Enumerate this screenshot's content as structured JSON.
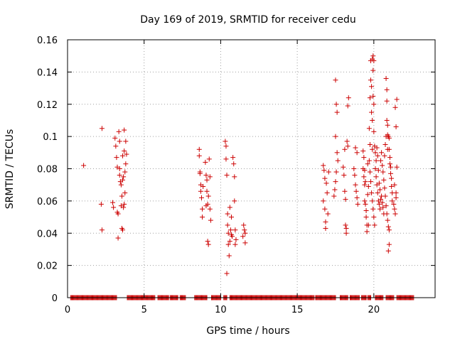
{
  "chart_data": {
    "type": "scatter",
    "title": "Day 169 of 2019, SRMTID for receiver cedu",
    "xlabel": "GPS time / hours",
    "ylabel": "SRMTID / TECUs",
    "xlim": [
      0,
      24
    ],
    "ylim": [
      0,
      0.16
    ],
    "xticks": [
      "0",
      "5",
      "10",
      "15",
      "20"
    ],
    "xtick_values": [
      0,
      5,
      10,
      15,
      20
    ],
    "yticks": [
      "0",
      "0.02",
      "0.04",
      "0.06",
      "0.08",
      "0.1",
      "0.12",
      "0.14",
      "0.16"
    ],
    "ytick_values": [
      0,
      0.02,
      0.04,
      0.06,
      0.08,
      0.1,
      0.12,
      0.14,
      0.16
    ],
    "grid": true,
    "marker": "+",
    "color": "#cc0000",
    "zero_bands": [
      [
        0.2,
        3.2
      ],
      [
        3.9,
        5.7
      ],
      [
        5.9,
        6.6
      ],
      [
        6.7,
        7.2
      ],
      [
        7.35,
        7.7
      ],
      [
        8.3,
        9.1
      ],
      [
        9.4,
        10.0
      ],
      [
        10.2,
        10.4
      ],
      [
        10.6,
        16.1
      ],
      [
        16.2,
        17.5
      ],
      [
        17.8,
        18.3
      ],
      [
        18.45,
        19.05
      ],
      [
        19.2,
        19.5
      ],
      [
        19.6,
        19.8
      ],
      [
        20.1,
        20.6
      ],
      [
        20.8,
        21.3
      ],
      [
        21.5,
        22.6
      ]
    ],
    "series": [
      {
        "name": "SRMTID",
        "points": [
          [
            1.05,
            0.082
          ],
          [
            2.25,
            0.105
          ],
          [
            2.2,
            0.058
          ],
          [
            2.25,
            0.042
          ],
          [
            2.95,
            0.059
          ],
          [
            3.0,
            0.056
          ],
          [
            3.1,
            0.099
          ],
          [
            3.15,
            0.094
          ],
          [
            3.2,
            0.087
          ],
          [
            3.25,
            0.081
          ],
          [
            3.3,
            0.052
          ],
          [
            3.3,
            0.037
          ],
          [
            3.35,
            0.103
          ],
          [
            3.4,
            0.097
          ],
          [
            3.4,
            0.076
          ],
          [
            3.45,
            0.072
          ],
          [
            3.5,
            0.07
          ],
          [
            3.5,
            0.057
          ],
          [
            3.55,
            0.043
          ],
          [
            3.6,
            0.088
          ],
          [
            3.6,
            0.073
          ],
          [
            3.65,
            0.075
          ],
          [
            3.65,
            0.056
          ],
          [
            3.7,
            0.104
          ],
          [
            3.7,
            0.091
          ],
          [
            3.75,
            0.078
          ],
          [
            3.75,
            0.065
          ],
          [
            3.8,
            0.083
          ],
          [
            3.8,
            0.097
          ],
          [
            3.85,
            0.089
          ],
          [
            3.55,
            0.063
          ],
          [
            3.4,
            0.08
          ],
          [
            3.6,
            0.042
          ],
          [
            3.25,
            0.053
          ],
          [
            3.7,
            0.058
          ],
          [
            8.6,
            0.092
          ],
          [
            8.6,
            0.088
          ],
          [
            8.65,
            0.078
          ],
          [
            8.65,
            0.077
          ],
          [
            8.7,
            0.07
          ],
          [
            8.7,
            0.066
          ],
          [
            8.75,
            0.062
          ],
          [
            8.8,
            0.055
          ],
          [
            8.8,
            0.05
          ],
          [
            9.0,
            0.084
          ],
          [
            9.05,
            0.076
          ],
          [
            9.1,
            0.073
          ],
          [
            9.1,
            0.066
          ],
          [
            9.15,
            0.058
          ],
          [
            9.15,
            0.035
          ],
          [
            9.2,
            0.033
          ],
          [
            9.25,
            0.086
          ],
          [
            9.3,
            0.075
          ],
          [
            9.3,
            0.055
          ],
          [
            9.35,
            0.048
          ],
          [
            9.2,
            0.063
          ],
          [
            9.05,
            0.057
          ],
          [
            8.85,
            0.069
          ],
          [
            10.3,
            0.097
          ],
          [
            10.35,
            0.086
          ],
          [
            10.4,
            0.076
          ],
          [
            10.45,
            0.052
          ],
          [
            10.45,
            0.045
          ],
          [
            10.5,
            0.04
          ],
          [
            10.5,
            0.033
          ],
          [
            10.55,
            0.026
          ],
          [
            10.4,
            0.015
          ],
          [
            10.6,
            0.056
          ],
          [
            10.65,
            0.042
          ],
          [
            10.7,
            0.039
          ],
          [
            10.75,
            0.038
          ],
          [
            10.8,
            0.087
          ],
          [
            10.85,
            0.083
          ],
          [
            10.9,
            0.075
          ],
          [
            10.9,
            0.06
          ],
          [
            10.95,
            0.042
          ],
          [
            10.95,
            0.033
          ],
          [
            11.0,
            0.036
          ],
          [
            10.35,
            0.094
          ],
          [
            10.7,
            0.05
          ],
          [
            10.6,
            0.035
          ],
          [
            11.5,
            0.045
          ],
          [
            11.55,
            0.042
          ],
          [
            11.6,
            0.04
          ],
          [
            11.6,
            0.034
          ],
          [
            11.45,
            0.038
          ],
          [
            16.7,
            0.082
          ],
          [
            16.75,
            0.079
          ],
          [
            16.8,
            0.074
          ],
          [
            16.8,
            0.055
          ],
          [
            16.85,
            0.047
          ],
          [
            16.85,
            0.043
          ],
          [
            16.9,
            0.071
          ],
          [
            16.95,
            0.065
          ],
          [
            17.0,
            0.052
          ],
          [
            17.05,
            0.078
          ],
          [
            16.7,
            0.06
          ],
          [
            17.4,
            0.063
          ],
          [
            17.45,
            0.067
          ],
          [
            17.5,
            0.135
          ],
          [
            17.55,
            0.12
          ],
          [
            17.6,
            0.115
          ],
          [
            17.5,
            0.1
          ],
          [
            17.6,
            0.09
          ],
          [
            17.55,
            0.078
          ],
          [
            17.5,
            0.072
          ],
          [
            17.65,
            0.085
          ],
          [
            18.0,
            0.081
          ],
          [
            18.05,
            0.076
          ],
          [
            18.1,
            0.066
          ],
          [
            18.15,
            0.061
          ],
          [
            18.15,
            0.045
          ],
          [
            18.2,
            0.043
          ],
          [
            18.2,
            0.04
          ],
          [
            18.25,
            0.097
          ],
          [
            18.3,
            0.094
          ],
          [
            18.3,
            0.119
          ],
          [
            18.35,
            0.124
          ],
          [
            18.1,
            0.092
          ],
          [
            18.7,
            0.08
          ],
          [
            18.75,
            0.076
          ],
          [
            18.8,
            0.07
          ],
          [
            18.85,
            0.066
          ],
          [
            18.9,
            0.062
          ],
          [
            18.95,
            0.058
          ],
          [
            18.8,
            0.093
          ],
          [
            18.9,
            0.09
          ],
          [
            19.3,
            0.08
          ],
          [
            19.35,
            0.075
          ],
          [
            19.4,
            0.07
          ],
          [
            19.4,
            0.06
          ],
          [
            19.45,
            0.058
          ],
          [
            19.5,
            0.054
          ],
          [
            19.5,
            0.05
          ],
          [
            19.55,
            0.045
          ],
          [
            19.55,
            0.041
          ],
          [
            19.6,
            0.083
          ],
          [
            19.6,
            0.064
          ],
          [
            19.65,
            0.069
          ],
          [
            19.65,
            0.045
          ],
          [
            19.3,
            0.091
          ],
          [
            19.35,
            0.087
          ],
          [
            19.4,
            0.079
          ],
          [
            19.45,
            0.072
          ],
          [
            19.7,
            0.105
          ],
          [
            19.75,
            0.124
          ],
          [
            19.75,
            0.095
          ],
          [
            19.8,
            0.147
          ],
          [
            19.8,
            0.135
          ],
          [
            19.85,
            0.131
          ],
          [
            19.9,
            0.148
          ],
          [
            19.9,
            0.11
          ],
          [
            19.9,
            0.092
          ],
          [
            19.95,
            0.15
          ],
          [
            19.95,
            0.141
          ],
          [
            20.0,
            0.147
          ],
          [
            20.0,
            0.103
          ],
          [
            20.05,
            0.094
          ],
          [
            20.0,
            0.12
          ],
          [
            19.85,
            0.115
          ],
          [
            19.95,
            0.125
          ],
          [
            19.7,
            0.085
          ],
          [
            19.75,
            0.078
          ],
          [
            19.8,
            0.072
          ],
          [
            19.85,
            0.065
          ],
          [
            19.9,
            0.06
          ],
          [
            19.95,
            0.055
          ],
          [
            20.0,
            0.05
          ],
          [
            20.05,
            0.045
          ],
          [
            20.1,
            0.08
          ],
          [
            20.15,
            0.075
          ],
          [
            20.2,
            0.07
          ],
          [
            20.25,
            0.065
          ],
          [
            20.3,
            0.06
          ],
          [
            20.35,
            0.058
          ],
          [
            20.4,
            0.055
          ],
          [
            20.45,
            0.085
          ],
          [
            20.5,
            0.09
          ],
          [
            20.55,
            0.082
          ],
          [
            20.6,
            0.078
          ],
          [
            20.65,
            0.073
          ],
          [
            20.7,
            0.068
          ],
          [
            20.75,
            0.063
          ],
          [
            20.8,
            0.057
          ],
          [
            20.85,
            0.052
          ],
          [
            20.9,
            0.048
          ],
          [
            20.95,
            0.044
          ],
          [
            21.0,
            0.042
          ],
          [
            20.1,
            0.09
          ],
          [
            20.15,
            0.085
          ],
          [
            20.2,
            0.093
          ],
          [
            20.25,
            0.088
          ],
          [
            20.3,
            0.079
          ],
          [
            20.35,
            0.071
          ],
          [
            20.4,
            0.067
          ],
          [
            20.45,
            0.061
          ],
          [
            20.5,
            0.063
          ],
          [
            20.55,
            0.059
          ],
          [
            20.6,
            0.056
          ],
          [
            20.65,
            0.052
          ],
          [
            20.7,
            0.088
          ],
          [
            20.75,
            0.095
          ],
          [
            20.8,
            0.1
          ],
          [
            20.8,
            0.136
          ],
          [
            20.85,
            0.129
          ],
          [
            20.85,
            0.122
          ],
          [
            20.9,
            0.107
          ],
          [
            20.9,
            0.101
          ],
          [
            20.95,
            0.1
          ],
          [
            21.0,
            0.099
          ],
          [
            21.0,
            0.092
          ],
          [
            21.05,
            0.087
          ],
          [
            21.05,
            0.083
          ],
          [
            21.1,
            0.081
          ],
          [
            21.1,
            0.077
          ],
          [
            21.15,
            0.074
          ],
          [
            21.15,
            0.069
          ],
          [
            21.2,
            0.065
          ],
          [
            21.2,
            0.06
          ],
          [
            21.0,
            0.033
          ],
          [
            20.95,
            0.029
          ],
          [
            20.9,
            0.092
          ],
          [
            20.85,
            0.11
          ],
          [
            21.3,
            0.058
          ],
          [
            21.35,
            0.055
          ],
          [
            21.4,
            0.052
          ],
          [
            21.45,
            0.065
          ],
          [
            21.45,
            0.062
          ],
          [
            21.5,
            0.081
          ],
          [
            21.5,
            0.123
          ],
          [
            21.45,
            0.106
          ],
          [
            21.4,
            0.118
          ],
          [
            21.35,
            0.07
          ]
        ]
      }
    ]
  }
}
